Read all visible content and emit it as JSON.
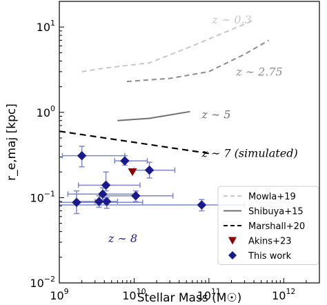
{
  "chart_data": {
    "type": "scatter",
    "xlabel": "Stellar Mass (M☉)",
    "ylabel": "r_e,maj [kpc]",
    "xscale": "log",
    "yscale": "log",
    "xlim": [
      1000000000.0,
      3000000000000.0
    ],
    "ylim": [
      0.01,
      20
    ],
    "grid": false,
    "legend_position": "bottom-right",
    "x_ticks": [
      {
        "value": 1000000000.0,
        "base": "10",
        "exp": "9"
      },
      {
        "value": 10000000000.0,
        "base": "10",
        "exp": "10"
      },
      {
        "value": 100000000000.0,
        "base": "10",
        "exp": "11"
      },
      {
        "value": 1000000000000.0,
        "base": "10",
        "exp": "12"
      }
    ],
    "y_ticks": [
      {
        "value": 0.01,
        "base": "10",
        "exp": "−2"
      },
      {
        "value": 0.1,
        "base": "10",
        "exp": "−1"
      },
      {
        "value": 1,
        "base": "10",
        "exp": "0"
      },
      {
        "value": 10,
        "base": "10",
        "exp": "1"
      }
    ],
    "series": [
      {
        "name": "Mowla+19",
        "kind": "line",
        "style": "dashed",
        "color": "#c8c8c8",
        "points": [
          [
            2000000000.0,
            3.0
          ],
          [
            4000000000.0,
            3.3
          ],
          [
            16000000000.0,
            3.8
          ],
          [
            60000000000.0,
            6.0
          ],
          [
            180000000000.0,
            9.0
          ],
          [
            400000000000.0,
            12.0
          ]
        ]
      },
      {
        "name": "Mowla+19",
        "kind": "line",
        "style": "dashed",
        "color": "#8c8c8c",
        "legend": false,
        "points": [
          [
            8000000000.0,
            2.3
          ],
          [
            30000000000.0,
            2.5
          ],
          [
            100000000000.0,
            3.0
          ],
          [
            300000000000.0,
            4.8
          ],
          [
            630000000000.0,
            7.0
          ]
        ]
      },
      {
        "name": "Shibuya+15",
        "kind": "line",
        "style": "solid",
        "color": "#707070",
        "points": [
          [
            6000000000.0,
            0.8
          ],
          [
            16000000000.0,
            0.85
          ],
          [
            56000000000.0,
            1.02
          ]
        ]
      },
      {
        "name": "Marshall+20",
        "kind": "line",
        "style": "dashed",
        "color": "#000000",
        "points": [
          [
            1000000000.0,
            0.6
          ],
          [
            100000000000.0,
            0.33
          ]
        ]
      },
      {
        "name": "Akins+23",
        "kind": "marker",
        "marker": "triangle-down",
        "color": "#8b0000",
        "points": [
          {
            "x": 9500000000.0,
            "y": 0.2
          }
        ]
      },
      {
        "name": "This work",
        "kind": "errorbar",
        "marker": "diamond",
        "color": "#1a1a8c",
        "errcolor": "#7c85d0",
        "points": [
          {
            "x": 2000000000.0,
            "y": 0.31,
            "xlo": 1100000000.0,
            "xhi": 7500000000.0,
            "ylo": 0.23,
            "yhi": 0.4
          },
          {
            "x": 7500000000.0,
            "y": 0.27,
            "xlo": 5500000000.0,
            "xhi": 15000000000.0,
            "ylo": 0.24,
            "yhi": 0.31
          },
          {
            "x": 16000000000.0,
            "y": 0.21,
            "xlo": 10000000000.0,
            "xhi": 35000000000.0,
            "ylo": 0.17,
            "yhi": 0.26
          },
          {
            "x": 4200000000.0,
            "y": 0.14,
            "xlo": 1800000000.0,
            "xhi": 12000000000.0,
            "ylo": 0.12,
            "yhi": 0.2
          },
          {
            "x": 3800000000.0,
            "y": 0.11,
            "xlo": 1300000000.0,
            "xhi": 11000000000.0,
            "ylo": 0.095,
            "yhi": 0.13
          },
          {
            "x": 10500000000.0,
            "y": 0.105,
            "xlo": 3500000000.0,
            "xhi": 33000000000.0,
            "ylo": 0.09,
            "yhi": 0.12
          },
          {
            "x": 3400000000.0,
            "y": 0.09,
            "xlo": 1700000000.0,
            "xhi": 4000000000.0,
            "ylo": 0.077,
            "yhi": 0.105
          },
          {
            "x": 1700000000.0,
            "y": 0.088,
            "xlo": 1000000000.0,
            "xhi": 13000000000.0,
            "ylo": 0.065,
            "yhi": 0.12
          },
          {
            "x": 4300000000.0,
            "y": 0.09,
            "xlo": 3000000000.0,
            "xhi": 6000000000.0,
            "ylo": 0.075,
            "yhi": 0.1
          },
          {
            "x": 80000000000.0,
            "y": 0.082,
            "xlo": 1000000000.0,
            "xhi": 300000000000.0,
            "ylo": 0.07,
            "yhi": 0.095
          }
        ]
      }
    ],
    "annotations": [
      {
        "text": "z ∼ 0.3",
        "x": 110000000000.0,
        "y": 11.0,
        "color": "#c8c8c8"
      },
      {
        "text": "z ∼ 2.75",
        "x": 230000000000.0,
        "y": 2.7,
        "color": "#8c8c8c"
      },
      {
        "text": "z ∼ 5",
        "x": 80000000000.0,
        "y": 0.85,
        "color": "#707070"
      },
      {
        "text": "z ∼ 7 (simulated)",
        "x": 80000000000.0,
        "y": 0.3,
        "color": "#000000"
      },
      {
        "text": "z ∼ 8",
        "x": 4500000000.0,
        "y": 0.03,
        "color": "#1a1a8c"
      }
    ],
    "legend": [
      {
        "label": "Mowla+19",
        "symbol": "dashed",
        "color": "#c8c8c8"
      },
      {
        "label": "Shibuya+15",
        "symbol": "solid",
        "color": "#707070"
      },
      {
        "label": "Marshall+20",
        "symbol": "dashed",
        "color": "#000000"
      },
      {
        "label": "Akins+23",
        "symbol": "triangle-down",
        "color": "#8b0000"
      },
      {
        "label": "This work",
        "symbol": "diamond",
        "color": "#1a1a8c"
      }
    ]
  }
}
